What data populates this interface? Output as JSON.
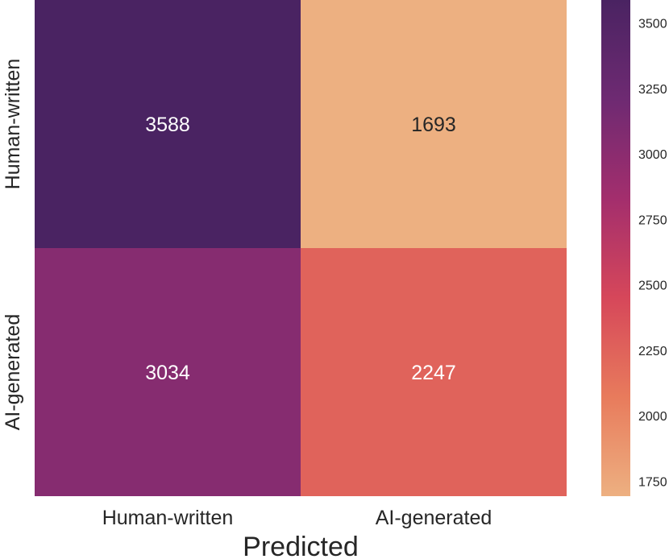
{
  "chart_data": {
    "type": "heatmap",
    "rows": [
      "Human-written",
      "AI-generated"
    ],
    "columns": [
      "Human-written",
      "AI-generated"
    ],
    "values": [
      [
        3588,
        1693
      ],
      [
        3034,
        2247
      ]
    ],
    "xlabel": "Predicted",
    "ylabel": "",
    "colormap": "flare",
    "colorbar": {
      "range": [
        1693,
        3588
      ],
      "ticks": [
        1750,
        2000,
        2250,
        2500,
        2750,
        3000,
        3250,
        3500
      ],
      "colors": [
        "#edb081",
        "#e87b5c",
        "#d6475a",
        "#a32e6d",
        "#6e2a72",
        "#4a2362"
      ]
    },
    "grid": false
  }
}
